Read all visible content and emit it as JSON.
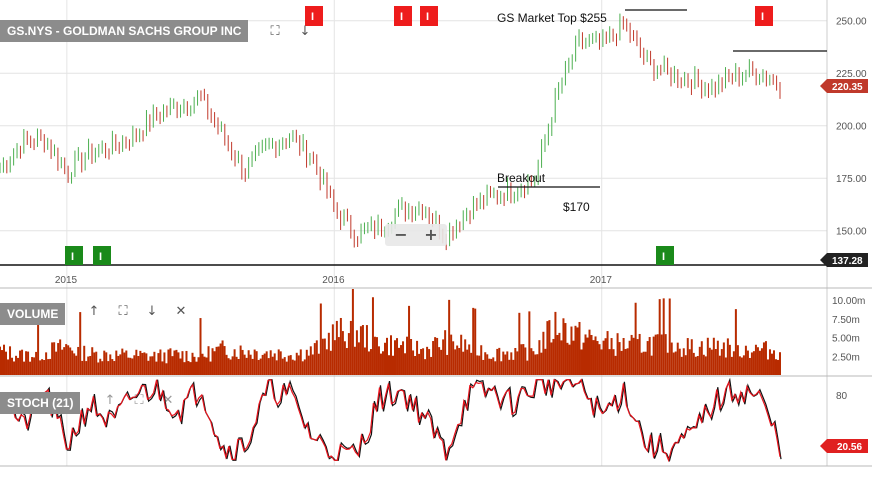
{
  "chart_data": [
    {
      "type": "ohlc",
      "symbol_label": "GS.NYS - GOLDMAN SACHS GROUP INC",
      "x_ticks": [
        "2015",
        "2016",
        "2017"
      ],
      "y_ticks": [
        150,
        175,
        200,
        225,
        250
      ],
      "ylim": [
        137,
        257
      ],
      "grid": true,
      "last_price": "220.35",
      "support_price": "137.28",
      "annotations": [
        {
          "text": "GS Market Top $255"
        },
        {
          "text": "Breakout"
        },
        {
          "text": "$170"
        }
      ],
      "series": [
        {
          "x": [
            "2014-10",
            "2014-11",
            "2014-12",
            "2015-01",
            "2015-02",
            "2015-03",
            "2015-04",
            "2015-05",
            "2015-06",
            "2015-07",
            "2015-08",
            "2015-09",
            "2015-10",
            "2015-11",
            "2015-12",
            "2016-01",
            "2016-02",
            "2016-03",
            "2016-04",
            "2016-05",
            "2016-06",
            "2016-07",
            "2016-08",
            "2016-09",
            "2016-10",
            "2016-11",
            "2016-12",
            "2017-01",
            "2017-02",
            "2017-03",
            "2017-04",
            "2017-05",
            "2017-06",
            "2017-07",
            "2017-08",
            "2017-09"
          ],
          "values": [
            180,
            192,
            194,
            178,
            187,
            190,
            195,
            205,
            210,
            213,
            195,
            178,
            190,
            195,
            185,
            160,
            148,
            152,
            160,
            162,
            148,
            160,
            166,
            170,
            175,
            215,
            240,
            238,
            248,
            230,
            225,
            222,
            218,
            224,
            226,
            220
          ]
        }
      ],
      "event_markers_top": [
        "I",
        "I",
        "I",
        "I"
      ],
      "event_markers_bottom": [
        "I",
        "I",
        "I"
      ]
    },
    {
      "type": "bar",
      "panel_label": "VOLUME",
      "y_ticks": [
        "2.50m",
        "5.00m",
        "7.50m",
        "10.00m"
      ],
      "ylim": [
        0,
        11.5
      ],
      "series": [
        {
          "x": [
            "2014-10",
            "2014-11",
            "2014-12",
            "2015-01",
            "2015-02",
            "2015-03",
            "2015-04",
            "2015-05",
            "2015-06",
            "2015-07",
            "2015-08",
            "2015-09",
            "2015-10",
            "2015-11",
            "2015-12",
            "2016-01",
            "2016-02",
            "2016-03",
            "2016-04",
            "2016-05",
            "2016-06",
            "2016-07",
            "2016-08",
            "2016-09",
            "2016-10",
            "2016-11",
            "2016-12",
            "2017-01",
            "2017-02",
            "2017-03",
            "2017-04",
            "2017-05",
            "2017-06",
            "2017-07",
            "2017-08",
            "2017-09"
          ],
          "values": [
            3.2,
            2.6,
            3.0,
            3.8,
            2.8,
            2.7,
            2.6,
            2.5,
            2.7,
            2.6,
            3.4,
            3.2,
            3.0,
            2.8,
            3.1,
            5.5,
            5.8,
            4.2,
            4.0,
            3.3,
            4.5,
            3.8,
            2.9,
            3.0,
            3.3,
            6.8,
            5.2,
            4.4,
            4.0,
            4.2,
            4.6,
            3.6,
            3.9,
            3.5,
            3.4,
            3.2
          ]
        }
      ]
    },
    {
      "type": "line",
      "panel_label": "STOCH (21)",
      "y_ticks": [
        20,
        80
      ],
      "ylim": [
        0,
        100
      ],
      "last_value": "20.56",
      "series": [
        {
          "x": [
            "2014-10",
            "2014-11",
            "2014-12",
            "2015-01",
            "2015-02",
            "2015-03",
            "2015-04",
            "2015-05",
            "2015-06",
            "2015-07",
            "2015-08",
            "2015-09",
            "2015-10",
            "2015-11",
            "2015-12",
            "2016-01",
            "2016-02",
            "2016-03",
            "2016-04",
            "2016-05",
            "2016-06",
            "2016-07",
            "2016-08",
            "2016-09",
            "2016-10",
            "2016-11",
            "2016-12",
            "2017-01",
            "2017-02",
            "2017-03",
            "2017-04",
            "2017-05",
            "2017-06",
            "2017-07",
            "2017-08",
            "2017-09"
          ],
          "values": [
            90,
            40,
            85,
            20,
            70,
            45,
            80,
            88,
            60,
            90,
            15,
            20,
            85,
            80,
            30,
            10,
            8,
            75,
            85,
            55,
            12,
            80,
            85,
            70,
            90,
            95,
            92,
            55,
            85,
            20,
            15,
            30,
            70,
            85,
            80,
            20
          ]
        }
      ]
    }
  ],
  "toolbar": {
    "up_icon": "arrow-up-icon",
    "expand_icon": "expand-icon",
    "down_icon": "arrow-down-icon",
    "close_icon": "close-icon",
    "zoom_out_icon": "minus-icon",
    "zoom_in_icon": "plus-icon"
  },
  "colors": {
    "up_bar": "#4caf50",
    "down_bar": "#c0392b",
    "volume": "#b82b00",
    "stoch_k": "#e8141d",
    "stoch_d": "#111111",
    "price_tag": "#c0392b",
    "support_tag": "#222222",
    "marker_top": "#ee1c1c",
    "marker_bottom": "#1a8a1a",
    "panel_label_bg": "#8c8c8c",
    "grid": "#e4e4e4"
  }
}
